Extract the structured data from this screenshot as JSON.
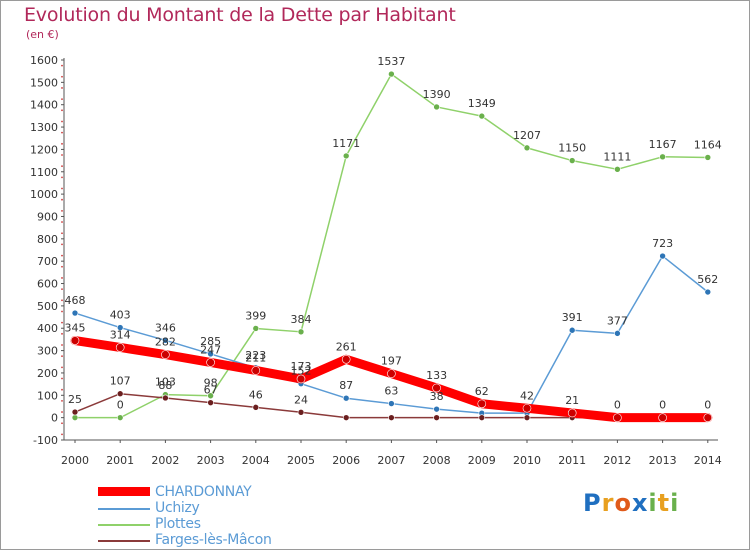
{
  "title": "Evolution du Montant de la Dette par Habitant",
  "subtitle": "(en €)",
  "brand": {
    "letters": [
      "P",
      "r",
      "o",
      "x",
      "i",
      "t",
      "i"
    ],
    "colors": [
      "#1f6fc0",
      "#e8a020",
      "#e05a1a",
      "#1f6fc0",
      "#6ab04c",
      "#e8a020",
      "#6ab04c"
    ]
  },
  "chart_data": {
    "type": "line",
    "x": [
      "2000",
      "2001",
      "2002",
      "2003",
      "2004",
      "2005",
      "2006",
      "2007",
      "2008",
      "2009",
      "2010",
      "2011",
      "2012",
      "2013",
      "2014"
    ],
    "ylim": [
      -100,
      1600
    ],
    "yticks": [
      "-100",
      "0",
      "100",
      "200",
      "300",
      "400",
      "500",
      "600",
      "700",
      "800",
      "900",
      "1000",
      "1100",
      "1200",
      "1300",
      "1400",
      "1500",
      "1600"
    ],
    "grid": false,
    "legend_position": "bottom-left",
    "series": [
      {
        "name": "CHARDONNAY",
        "color": "#ff0000",
        "marker": "#cc0000",
        "width": 9,
        "values": [
          345,
          314,
          282,
          247,
          211,
          173,
          261,
          197,
          133,
          62,
          42,
          21,
          0,
          0,
          0
        ],
        "labels": [
          "345",
          "314",
          "282",
          "247",
          "211",
          "173",
          "261",
          "197",
          "133",
          "62",
          "42",
          "21",
          "0",
          "0",
          "0"
        ]
      },
      {
        "name": "Uchizy",
        "color": "#5b9bd5",
        "marker": "#2e75b6",
        "width": 1.5,
        "values": [
          468,
          403,
          346,
          285,
          223,
          152,
          87,
          63,
          38,
          20,
          20,
          391,
          377,
          723,
          562
        ],
        "labels": [
          "468",
          "403",
          "346",
          "285",
          "223",
          "152",
          "87",
          "63",
          "38",
          "",
          "",
          "391",
          "377",
          "723",
          "562"
        ]
      },
      {
        "name": "Plottes",
        "color": "#8fd16a",
        "marker": "#6ab04c",
        "width": 1.5,
        "values": [
          0,
          0,
          103,
          98,
          399,
          384,
          1171,
          1537,
          1390,
          1349,
          1207,
          1150,
          1111,
          1167,
          1164
        ],
        "labels": [
          "",
          "0",
          "103",
          "98",
          "399",
          "384",
          "1171",
          "1537",
          "1390",
          "1349",
          "1207",
          "1150",
          "1111",
          "1167",
          "1164"
        ]
      },
      {
        "name": "Farges-lès-Mâcon",
        "color": "#8b3a3a",
        "marker": "#6b1f1f",
        "width": 1.5,
        "values": [
          25,
          107,
          88,
          67,
          46,
          24,
          0,
          0,
          0,
          0,
          0,
          0,
          0,
          0,
          0
        ],
        "labels": [
          "25",
          "107",
          "88",
          "67",
          "46",
          "24",
          "",
          "",
          "",
          "",
          "",
          "",
          "",
          "",
          ""
        ]
      }
    ]
  }
}
